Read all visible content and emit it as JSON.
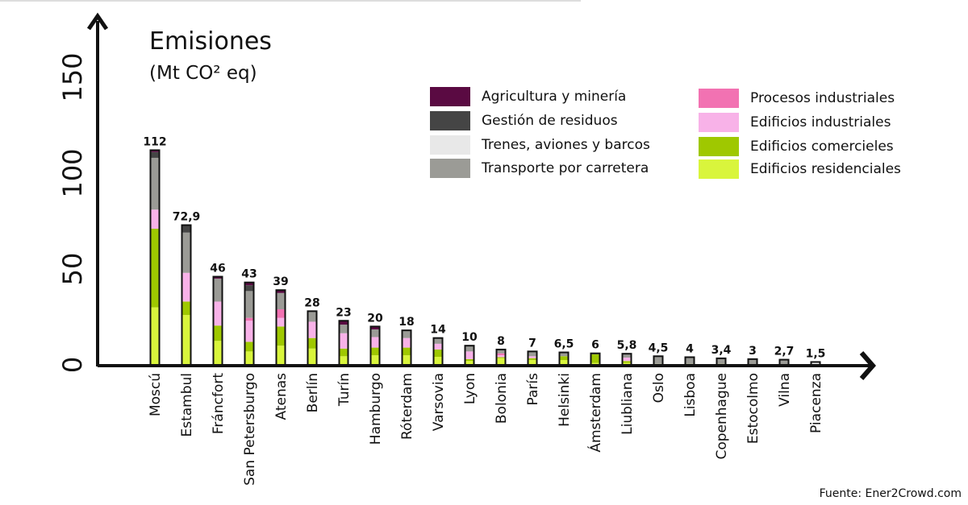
{
  "chart_data": {
    "type": "bar",
    "stacked": true,
    "title": "Emisiones",
    "subtitle": "(Mt CO² eq)",
    "ylim": [
      0,
      150
    ],
    "yticks": [
      "0",
      "50",
      "100",
      "150"
    ],
    "grid": false,
    "legend_position": "top-right",
    "categories": [
      "Moscú",
      "Estambul",
      "Fráncfort",
      "San Petersburgo",
      "Atenas",
      "Berlín",
      "Turín",
      "Hamburgo",
      "Róterdam",
      "Varsovia",
      "Lyon",
      "Bolonia",
      "París",
      "Helsinki",
      "Ámsterdam",
      "Liubliana",
      "Oslo",
      "Lisboa",
      "Copenhague",
      "Estocolmo",
      "Vilna",
      "Piacenza"
    ],
    "totals": [
      112,
      72.9,
      46,
      43,
      39,
      28,
      23,
      20,
      18,
      14,
      10,
      8,
      7,
      6.5,
      6,
      5.8,
      4.5,
      4,
      3.4,
      3,
      2.7,
      1.5
    ],
    "total_labels": [
      "112",
      "72,9",
      "46",
      "43",
      "39",
      "28",
      "23",
      "20",
      "18",
      "14",
      "10",
      "8",
      "7",
      "6,5",
      "6",
      "5,8",
      "4,5",
      "4",
      "3,4",
      "3",
      "2,7",
      "1,5"
    ],
    "series": [
      {
        "name": "Edificios residenciales",
        "color": "#d9f53c",
        "values": [
          30,
          26,
          12.5,
          7,
          10,
          8.5,
          4.5,
          5,
          5,
          4.2,
          2,
          3.5,
          2.5,
          2.5,
          1,
          1,
          0.5,
          0,
          0,
          0,
          0,
          0
        ]
      },
      {
        "name": "Edificios comercieles",
        "color": "#9fc800",
        "values": [
          41,
          7,
          8,
          5,
          10,
          5.5,
          4,
          4,
          4,
          3.8,
          1,
          0.5,
          1,
          2,
          4.5,
          1,
          0,
          0.5,
          0.5,
          0,
          0,
          0
        ]
      },
      {
        "name": "Edificios industriales",
        "color": "#f8b2e8",
        "values": [
          10,
          15,
          12.5,
          11,
          4.5,
          8.5,
          8,
          5.5,
          5,
          3,
          4,
          1,
          1,
          0,
          0,
          1.8,
          0,
          0,
          0,
          0,
          0,
          0
        ]
      },
      {
        "name": "Procesos industriales",
        "color": "#f272b2",
        "values": [
          0,
          0,
          0,
          1.5,
          4.5,
          0,
          0,
          0,
          0,
          0,
          0,
          1,
          0,
          0,
          0,
          0,
          0,
          0,
          0,
          0,
          0,
          0
        ]
      },
      {
        "name": "Transporte por carretera",
        "color": "#9b9b96",
        "values": [
          27,
          21,
          12,
          14,
          8.5,
          5.5,
          4.5,
          4,
          4,
          3,
          3,
          2,
          2.5,
          2,
          0.5,
          2,
          4,
          3.5,
          2.9,
          3,
          2.7,
          0
        ]
      },
      {
        "name": "Trenes, aviones y barcos",
        "color": "#e8e8e8",
        "values": [
          0,
          0,
          0,
          0,
          0,
          0,
          0,
          0,
          0,
          0,
          0,
          0,
          0,
          0,
          0,
          0,
          0,
          0,
          0,
          0,
          0,
          1.5
        ]
      },
      {
        "name": "Gestión de residuos",
        "color": "#454545",
        "values": [
          3,
          3.9,
          0,
          3,
          0,
          0,
          0,
          0,
          0,
          0,
          0,
          0,
          0,
          0,
          0,
          0,
          0,
          0,
          0,
          0,
          0,
          0
        ]
      },
      {
        "name": "Agricultura y minería",
        "color": "#5a0a42",
        "values": [
          1,
          0,
          1,
          1.5,
          1.5,
          0,
          2,
          1.5,
          0,
          0,
          0,
          0,
          0,
          0,
          0,
          0,
          0,
          0,
          0,
          0,
          0,
          0
        ]
      }
    ]
  },
  "legend": {
    "left": [
      {
        "label": "Agricultura y minería",
        "color": "#5a0a42"
      },
      {
        "label": "Gestión de residuos",
        "color": "#454545"
      },
      {
        "label": "Trenes, aviones y barcos",
        "color": "#e8e8e8"
      },
      {
        "label": "Transporte por carretera",
        "color": "#9b9b96"
      }
    ],
    "right": [
      {
        "label": "Procesos industriales",
        "color": "#f272b2"
      },
      {
        "label": "Edificios industriales",
        "color": "#f8b2e8"
      },
      {
        "label": "Edificios comercieles",
        "color": "#9fc800"
      },
      {
        "label": "Edificios residenciales",
        "color": "#d9f53c"
      }
    ]
  },
  "source": "Fuente: Ener2Crowd.com"
}
